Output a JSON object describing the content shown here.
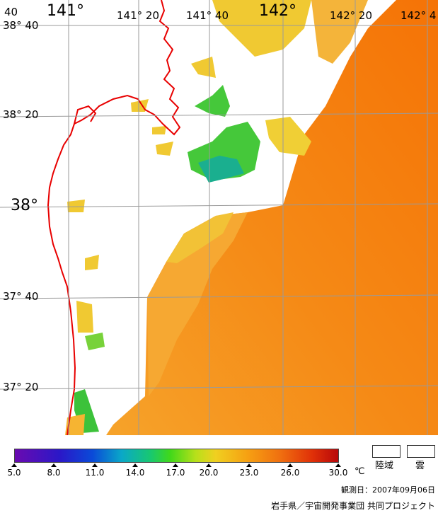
{
  "map": {
    "lon_labels": [
      {
        "text": "141°",
        "size": "big"
      },
      {
        "text": "141° 20",
        "size": "small"
      },
      {
        "text": "141° 40",
        "size": "small"
      },
      {
        "text": "142°",
        "size": "big"
      },
      {
        "text": "142° 20",
        "size": "small"
      },
      {
        "text": "142° 4",
        "size": "small"
      }
    ],
    "lat_labels": [
      {
        "text": "38° 40",
        "size": "small"
      },
      {
        "text": "38° 20",
        "size": "small"
      },
      {
        "text": "38°",
        "size": "big"
      },
      {
        "text": "37° 40",
        "size": "small"
      },
      {
        "text": "37° 20",
        "size": "small"
      }
    ],
    "edge_label": "40",
    "colors": {
      "coast": "#e80000",
      "sst_warm": "#f57d0a",
      "sst_mid": "#f6a32a",
      "sst_yellow": "#f0cc30",
      "sst_green": "#45c83a",
      "sst_teal": "#1aaf8f",
      "grid": "#9a9a9a"
    }
  },
  "colorbar": {
    "unit": "℃",
    "ticks": [
      "5.0",
      "8.0",
      "11.0",
      "14.0",
      "17.0",
      "20.0",
      "23.0",
      "26.0",
      "30.0"
    ]
  },
  "legend": {
    "land": "陸域",
    "cloud": "雲"
  },
  "observation_date": "観測日：2007年09月06日",
  "footer": "岩手県／宇宙開発事業団 共同プロジェクト"
}
